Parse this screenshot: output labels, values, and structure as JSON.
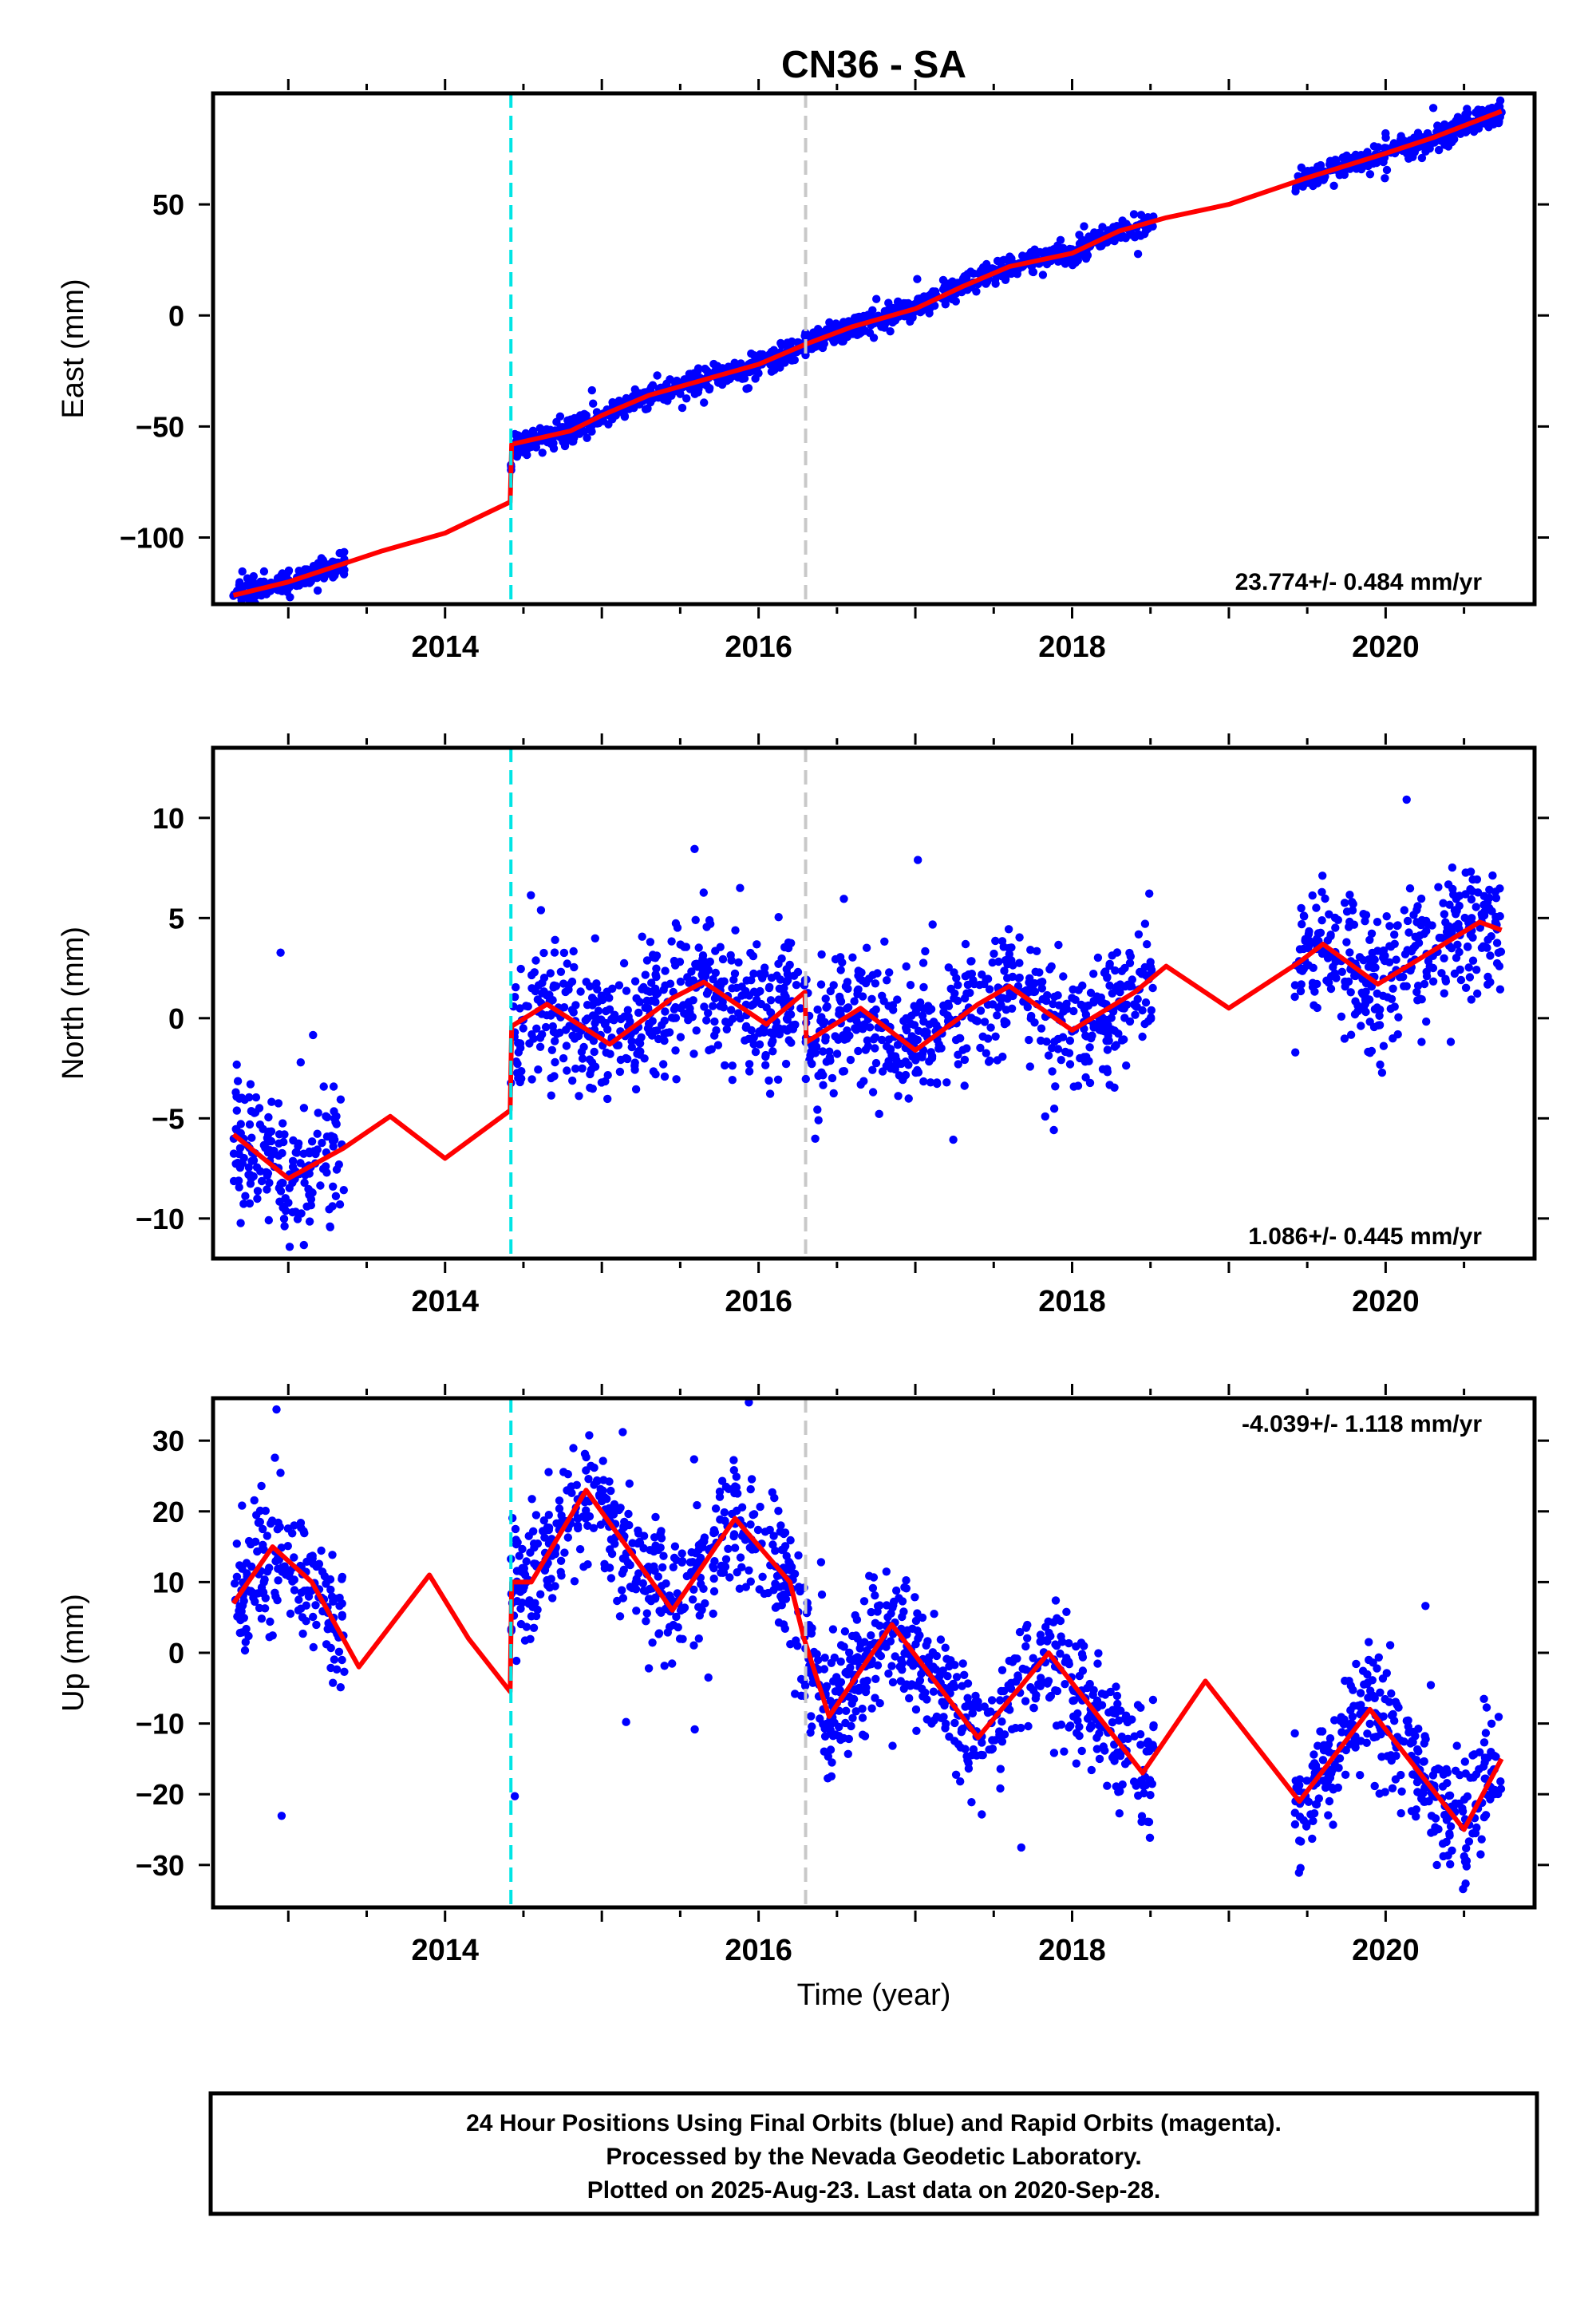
{
  "title": "CN36 - SA",
  "colors": {
    "observations": "#0000ff",
    "model": "#ff0000",
    "equipment_change": "#00e5e5",
    "earthquake": "#c8c8c8",
    "frame": "#000000"
  },
  "x_axis": {
    "label": "Time (year)",
    "range": [
      2012.52,
      2020.95
    ],
    "major_ticks": [
      2014,
      2016,
      2018,
      2020
    ],
    "major_tick_labels": [
      "2014",
      "2016",
      "2018",
      "2020"
    ],
    "minor_tick_step": 0.5
  },
  "offsets": [
    {
      "kind": "equipment-change",
      "x": 2014.42
    },
    {
      "kind": "earthquake",
      "x": 2016.3
    }
  ],
  "footer": [
    "24 Hour Positions Using Final Orbits (blue) and Rapid Orbits (magenta).",
    "Processed by the Nevada Geodetic Laboratory.",
    "Plotted on 2025-Aug-23. Last data on 2020-Sep-28."
  ],
  "chart_data": [
    {
      "type": "scatter",
      "component": "east",
      "ylabel": "East (mm)",
      "ylim": [
        -130,
        100
      ],
      "yticks": [
        -100,
        -50,
        0,
        50
      ],
      "ytick_labels": [
        "−100",
        "−50",
        "0",
        "50"
      ],
      "rate_label": "23.774+/- 0.484 mm/yr",
      "rate_position": "bottom-right",
      "data_spans": [
        [
          2012.65,
          2013.36
        ],
        [
          2014.42,
          2018.52
        ],
        [
          2019.42,
          2020.74
        ]
      ],
      "model_knots": [
        [
          2012.65,
          -126
        ],
        [
          2013.0,
          -120
        ],
        [
          2013.3,
          -113
        ],
        [
          2013.6,
          -106
        ],
        [
          2014.0,
          -98
        ],
        [
          2014.415,
          -84
        ],
        [
          2014.425,
          -58
        ],
        [
          2014.8,
          -52
        ],
        [
          2015.0,
          -45
        ],
        [
          2015.3,
          -36
        ],
        [
          2015.6,
          -30
        ],
        [
          2016.0,
          -22
        ],
        [
          2016.3,
          -13
        ],
        [
          2016.6,
          -5
        ],
        [
          2017.0,
          3
        ],
        [
          2017.3,
          13
        ],
        [
          2017.6,
          22
        ],
        [
          2018.0,
          28
        ],
        [
          2018.3,
          38
        ],
        [
          2018.6,
          44
        ],
        [
          2019.0,
          50
        ],
        [
          2019.5,
          62
        ],
        [
          2020.0,
          73
        ],
        [
          2020.3,
          80
        ],
        [
          2020.74,
          92
        ]
      ],
      "scatter_spread": 2.5
    },
    {
      "type": "scatter",
      "component": "north",
      "ylabel": "North (mm)",
      "ylim": [
        -12,
        13.5
      ],
      "yticks": [
        -10,
        -5,
        0,
        5,
        10
      ],
      "ytick_labels": [
        "−10",
        "−5",
        "0",
        "5",
        "10"
      ],
      "rate_label": "1.086+/- 0.445 mm/yr",
      "rate_position": "bottom-right",
      "data_spans": [
        [
          2012.65,
          2013.36
        ],
        [
          2014.42,
          2018.52
        ],
        [
          2019.42,
          2020.74
        ]
      ],
      "model_knots": [
        [
          2012.65,
          -5.8
        ],
        [
          2013.0,
          -8.0
        ],
        [
          2013.35,
          -6.5
        ],
        [
          2013.65,
          -4.9
        ],
        [
          2014.0,
          -7.0
        ],
        [
          2014.415,
          -4.6
        ],
        [
          2014.425,
          -0.4
        ],
        [
          2014.65,
          0.7
        ],
        [
          2015.05,
          -1.3
        ],
        [
          2015.45,
          1.0
        ],
        [
          2015.65,
          1.8
        ],
        [
          2016.05,
          -0.3
        ],
        [
          2016.295,
          1.3
        ],
        [
          2016.305,
          -1.2
        ],
        [
          2016.65,
          0.5
        ],
        [
          2017.0,
          -1.6
        ],
        [
          2017.4,
          0.7
        ],
        [
          2017.6,
          1.6
        ],
        [
          2018.0,
          -0.6
        ],
        [
          2018.4,
          1.3
        ],
        [
          2018.6,
          2.6
        ],
        [
          2019.0,
          0.5
        ],
        [
          2019.45,
          2.8
        ],
        [
          2019.6,
          3.7
        ],
        [
          2019.95,
          1.7
        ],
        [
          2020.35,
          3.6
        ],
        [
          2020.6,
          4.8
        ],
        [
          2020.74,
          4.4
        ]
      ],
      "scatter_spread": 1.6
    },
    {
      "type": "scatter",
      "component": "up",
      "ylabel": "Up (mm)",
      "ylim": [
        -36,
        36
      ],
      "yticks": [
        -30,
        -20,
        -10,
        0,
        10,
        20,
        30
      ],
      "ytick_labels": [
        "−30",
        "−20",
        "−10",
        "0",
        "10",
        "20",
        "30"
      ],
      "rate_label": "-4.039+/- 1.118 mm/yr",
      "rate_position": "top-right",
      "data_spans": [
        [
          2012.65,
          2013.36
        ],
        [
          2014.42,
          2018.52
        ],
        [
          2019.42,
          2020.74
        ]
      ],
      "model_knots": [
        [
          2012.65,
          7
        ],
        [
          2012.9,
          15
        ],
        [
          2013.15,
          10
        ],
        [
          2013.45,
          -2
        ],
        [
          2013.9,
          11
        ],
        [
          2014.15,
          2
        ],
        [
          2014.415,
          -5.5
        ],
        [
          2014.425,
          10
        ],
        [
          2014.55,
          10
        ],
        [
          2014.9,
          23
        ],
        [
          2015.45,
          6
        ],
        [
          2015.85,
          19
        ],
        [
          2016.2,
          10
        ],
        [
          2016.29,
          2
        ],
        [
          2016.45,
          -9
        ],
        [
          2016.85,
          4
        ],
        [
          2017.4,
          -12
        ],
        [
          2017.85,
          0
        ],
        [
          2018.45,
          -17
        ],
        [
          2018.85,
          -4
        ],
        [
          2019.45,
          -21
        ],
        [
          2019.9,
          -8
        ],
        [
          2020.5,
          -25
        ],
        [
          2020.74,
          -15
        ]
      ],
      "scatter_spread": 4.5
    }
  ]
}
